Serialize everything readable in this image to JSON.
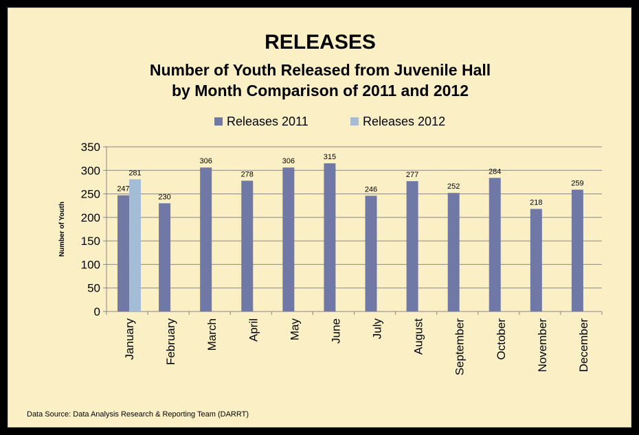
{
  "title": "RELEASES",
  "subtitle_line1": "Number of Youth Released from Juvenile Hall",
  "subtitle_line2": "by Month Comparison of 2011 and 2012",
  "source": "Data Source: Data Analysis Research & Reporting Team (DARRT)",
  "colors": {
    "background": "#fbefc6",
    "series_2011": "#7079a6",
    "series_2012": "#a4bcd6"
  },
  "chart_data": {
    "type": "bar",
    "title": "RELEASES",
    "subtitle": "Number of Youth Released from Juvenile Hall by Month Comparison of 2011 and 2012",
    "xlabel": "",
    "ylabel": "Number of Youth",
    "ylim": [
      0,
      350
    ],
    "yticks": [
      0,
      50,
      100,
      150,
      200,
      250,
      300,
      350
    ],
    "grid": true,
    "legend_position": "top",
    "categories": [
      "January",
      "February",
      "March",
      "April",
      "May",
      "June",
      "July",
      "August",
      "September",
      "October",
      "November",
      "December"
    ],
    "series": [
      {
        "name": "Releases 2011",
        "color": "#7079a6",
        "values": [
          247,
          230,
          306,
          278,
          306,
          315,
          246,
          277,
          252,
          284,
          218,
          259
        ]
      },
      {
        "name": "Releases 2012",
        "color": "#a4bcd6",
        "values": [
          281,
          null,
          null,
          null,
          null,
          null,
          null,
          null,
          null,
          null,
          null,
          null
        ]
      }
    ]
  }
}
